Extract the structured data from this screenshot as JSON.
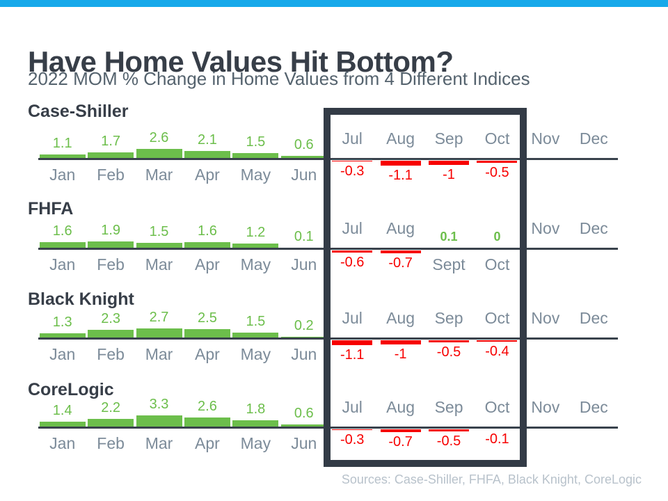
{
  "page": {
    "title": "Have Home Values Hit Bottom?",
    "subtitle": "2022 MOM % Change in Home Values from 4 Different Indices",
    "sources": "Sources: Case-Shiller, FHFA, Black Knight, CoreLogic"
  },
  "colors": {
    "top_bar": "#17a9ea",
    "positive_green": "#6cbe4b",
    "negative_red": "#f70000",
    "axis_line": "#39424c",
    "month_label": "#7c8b99",
    "heading_text": "#373e48",
    "subtitle_text": "#55636e",
    "sources_text": "#b8c2cb",
    "highlight_box": "#333b46"
  },
  "highlight": {
    "months": [
      "Jul",
      "Aug",
      "Sep",
      "Oct"
    ]
  },
  "chart_data": [
    {
      "type": "bar",
      "title": "Case-Shiller",
      "categories": [
        "Jan",
        "Feb",
        "Mar",
        "Apr",
        "May",
        "Jun",
        "Jul",
        "Aug",
        "Sep",
        "Oct",
        "Nov",
        "Dec"
      ],
      "values": [
        1.1,
        1.7,
        2.6,
        2.1,
        1.5,
        0.6,
        -0.3,
        -1.1,
        -1,
        -0.5,
        null,
        null
      ],
      "labels": [
        "1.1",
        "1.7",
        "2.6",
        "2.1",
        "1.5",
        "0.6",
        "-0.3",
        "-1.1",
        "-1",
        "-0.5",
        "",
        ""
      ],
      "emphasis_indices": []
    },
    {
      "type": "bar",
      "title": "FHFA",
      "categories": [
        "Jan",
        "Feb",
        "Mar",
        "Apr",
        "May",
        "Jun",
        "Jul",
        "Aug",
        "Sept",
        "Oct",
        "Nov",
        "Dec"
      ],
      "values": [
        1.6,
        1.9,
        1.5,
        1.6,
        1.2,
        0.1,
        -0.6,
        -0.7,
        0.1,
        0,
        null,
        null
      ],
      "labels": [
        "1.6",
        "1.9",
        "1.5",
        "1.6",
        "1.2",
        "0.1",
        "-0.6",
        "-0.7",
        "0.1",
        "0",
        "",
        ""
      ],
      "emphasis_indices": [
        8,
        9
      ]
    },
    {
      "type": "bar",
      "title": "Black Knight",
      "categories": [
        "Jan",
        "Feb",
        "Mar",
        "Apr",
        "May",
        "Jun",
        "Jul",
        "Aug",
        "Sep",
        "Oct",
        "Nov",
        "Dec"
      ],
      "values": [
        1.3,
        2.3,
        2.7,
        2.5,
        1.5,
        0.2,
        -1.1,
        -1,
        -0.5,
        -0.4,
        null,
        null
      ],
      "labels": [
        "1.3",
        "2.3",
        "2.7",
        "2.5",
        "1.5",
        "0.2",
        "-1.1",
        "-1",
        "-0.5",
        "-0.4",
        "",
        ""
      ],
      "emphasis_indices": []
    },
    {
      "type": "bar",
      "title": "CoreLogic",
      "categories": [
        "Jan",
        "Feb",
        "Mar",
        "Apr",
        "May",
        "Jun",
        "Jul",
        "Aug",
        "Sep",
        "Oct",
        "Nov",
        "Dec"
      ],
      "values": [
        1.4,
        2.2,
        3.3,
        2.6,
        1.8,
        0.6,
        -0.3,
        -0.7,
        -0.5,
        -0.1,
        null,
        null
      ],
      "labels": [
        "1.4",
        "2.2",
        "3.3",
        "2.6",
        "1.8",
        "0.6",
        "-0.3",
        "-0.7",
        "-0.5",
        "-0.1",
        "",
        ""
      ],
      "emphasis_indices": []
    }
  ]
}
